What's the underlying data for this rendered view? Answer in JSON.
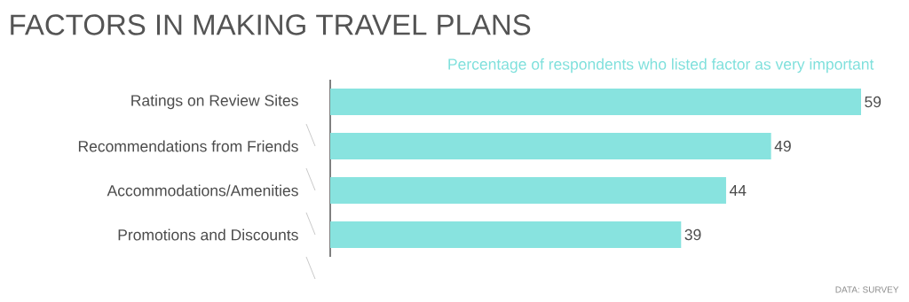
{
  "chart_data": {
    "type": "bar",
    "orientation": "horizontal",
    "title": "FACTORS IN MAKING TRAVEL PLANS",
    "subtitle": "Percentage of respondents who listed factor as very important",
    "categories": [
      "Ratings on Review Sites",
      "Recommendations from Friends",
      "Accommodations/Amenities",
      "Promotions and Discounts"
    ],
    "values": [
      59,
      49,
      44,
      39
    ],
    "color": "#88e3df",
    "data_labels": true,
    "annotations": [
      "DATA: SURVEY"
    ]
  }
}
